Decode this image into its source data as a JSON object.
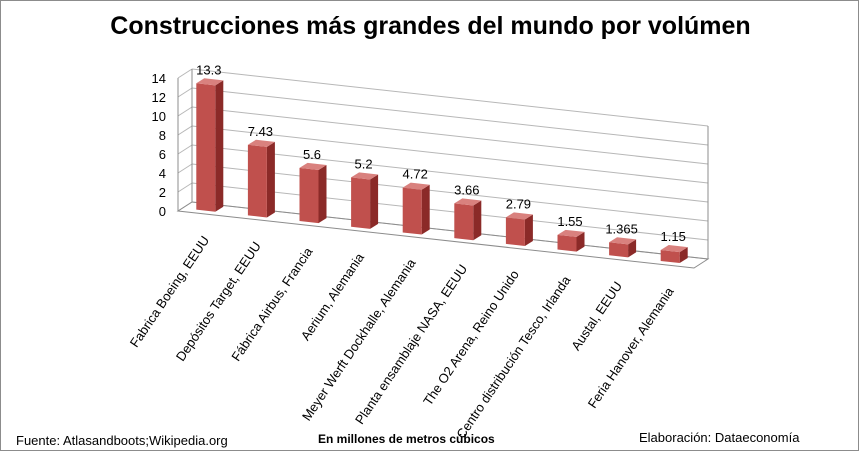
{
  "chart_data": {
    "type": "bar",
    "title": "Construcciones más grandes del mundo por volúmen",
    "xlabel": "En millones de metros cúbicos",
    "ylabel": "",
    "ylim": [
      0,
      14
    ],
    "yticks": [
      "0",
      "2",
      "4",
      "6",
      "8",
      "10",
      "12",
      "14"
    ],
    "categories": [
      "Fabrica Boeing, EEUU",
      "Depósitos Target, EEUU",
      "Fábrica Airbus, Francia",
      "Aerium, Alemania",
      "Meyer Werft Dockhalle, Alemania",
      "Planta ensamblaje NASA, EEUU",
      "The O2 Arena, Reino Unido",
      "Centro distribución Tesco, Irlanda",
      "Austal, EEUU",
      "Feria Hanover, Alemania"
    ],
    "values": [
      13.3,
      7.43,
      5.6,
      5.2,
      4.72,
      3.66,
      2.79,
      1.55,
      1.365,
      1.15
    ],
    "value_labels": [
      "13.3",
      "7.43",
      "5.6",
      "5.2",
      "4.72",
      "3.66",
      "2.79",
      "1.55",
      "1.365",
      "1.15"
    ],
    "grid": true,
    "bar_color": "#c0504d"
  },
  "footer": {
    "source": "Fuente:  Atlasandboots;Wikipedia.org",
    "credit": "Elaboración: Dataeconomía"
  }
}
